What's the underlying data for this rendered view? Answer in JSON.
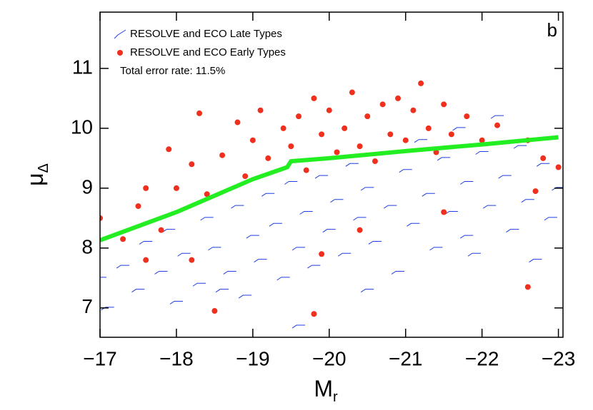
{
  "chart_data": {
    "type": "scatter",
    "annotation": "b",
    "note": "Total error rate: 11.5%",
    "x_label": "M",
    "x_label_sub": "r",
    "y_label": "μ",
    "y_label_sub": "Δ",
    "xlim": [
      -17,
      -23.06
    ],
    "ylim": [
      6.51,
      11.94
    ],
    "xticks": [
      {
        "value": -17,
        "label": "−17"
      },
      {
        "value": -18,
        "label": "−18"
      },
      {
        "value": -19,
        "label": "−19"
      },
      {
        "value": -20,
        "label": "−20"
      },
      {
        "value": -21,
        "label": "−21"
      },
      {
        "value": -22,
        "label": "−22"
      },
      {
        "value": -23,
        "label": "−23"
      }
    ],
    "yticks": [
      7,
      8,
      9,
      10,
      11
    ],
    "legend": "upper left",
    "series": [
      {
        "name": "RESOLVE and ECO Late Types",
        "color": "#1f3fe0",
        "marker": "dash",
        "x": [
          -17.0,
          -17.1,
          -17.3,
          -17.5,
          -17.6,
          -17.8,
          -17.9,
          -18.0,
          -18.1,
          -18.3,
          -18.4,
          -18.5,
          -18.7,
          -18.8,
          -18.9,
          -19.0,
          -19.1,
          -19.2,
          -19.3,
          -19.4,
          -19.5,
          -19.6,
          -19.7,
          -19.8,
          -19.9,
          -20.0,
          -20.1,
          -20.2,
          -20.3,
          -20.4,
          -20.5,
          -20.6,
          -20.7,
          -20.8,
          -20.9,
          -21.0,
          -21.1,
          -21.2,
          -21.3,
          -21.4,
          -21.5,
          -21.6,
          -21.7,
          -21.8,
          -21.9,
          -22.0,
          -22.1,
          -22.2,
          -22.3,
          -22.4,
          -22.5,
          -22.6,
          -22.7,
          -22.8,
          -22.9,
          -23.0,
          -19.6,
          -20.5,
          -21.8,
          -18.6
        ],
        "values": [
          7.5,
          7.0,
          7.7,
          7.3,
          8.1,
          7.6,
          8.3,
          7.1,
          7.9,
          7.4,
          8.5,
          8.0,
          7.6,
          8.7,
          7.2,
          8.2,
          7.8,
          8.9,
          8.4,
          7.5,
          9.1,
          8.0,
          8.6,
          7.7,
          9.2,
          8.3,
          8.8,
          7.9,
          9.4,
          8.5,
          9.0,
          8.1,
          9.6,
          8.7,
          7.6,
          9.3,
          8.4,
          9.8,
          8.9,
          8.0,
          9.5,
          8.6,
          10.0,
          9.1,
          7.9,
          9.6,
          8.7,
          10.2,
          9.2,
          8.3,
          9.7,
          8.8,
          7.8,
          9.4,
          8.5,
          9.0,
          6.7,
          7.3,
          8.2,
          7.3
        ]
      },
      {
        "name": "RESOLVE and ECO Early Types",
        "color": "#f0301e",
        "marker": "circle",
        "x": [
          -17.0,
          -17.3,
          -17.5,
          -17.6,
          -17.8,
          -17.9,
          -18.0,
          -18.2,
          -18.3,
          -18.4,
          -18.6,
          -18.8,
          -18.9,
          -19.0,
          -19.1,
          -19.2,
          -19.4,
          -19.5,
          -19.6,
          -19.7,
          -19.8,
          -19.9,
          -20.0,
          -20.1,
          -20.2,
          -20.3,
          -20.4,
          -20.5,
          -20.6,
          -20.7,
          -20.8,
          -20.9,
          -21.0,
          -21.1,
          -21.2,
          -21.3,
          -21.4,
          -21.5,
          -21.6,
          -21.8,
          -22.0,
          -22.2,
          -22.6,
          -22.8,
          -23.0,
          -22.6,
          -19.8,
          -18.5,
          -20.4,
          -19.9,
          -22.7,
          -21.5,
          -18.2,
          -17.6
        ],
        "values": [
          8.5,
          8.15,
          8.7,
          9.0,
          8.3,
          9.65,
          9.0,
          9.4,
          10.25,
          8.9,
          9.55,
          10.1,
          9.2,
          9.8,
          10.3,
          9.5,
          10.0,
          9.7,
          10.2,
          9.3,
          10.5,
          9.9,
          10.3,
          9.6,
          10.0,
          10.6,
          9.7,
          10.2,
          9.45,
          10.4,
          9.9,
          10.5,
          9.8,
          10.3,
          10.75,
          10.0,
          9.6,
          10.4,
          9.9,
          10.2,
          9.8,
          10.05,
          9.8,
          9.5,
          9.35,
          7.35,
          6.9,
          6.95,
          8.3,
          7.9,
          8.95,
          8.6,
          7.8,
          7.8
        ]
      },
      {
        "name": null,
        "color": "#22ee22",
        "marker": "line",
        "x": [
          -17.0,
          -18.0,
          -19.0,
          -19.45,
          -19.5,
          -20.0,
          -21.0,
          -22.0,
          -23.0
        ],
        "values": [
          8.13,
          8.6,
          9.15,
          9.35,
          9.45,
          9.5,
          9.62,
          9.73,
          9.85
        ]
      }
    ]
  }
}
